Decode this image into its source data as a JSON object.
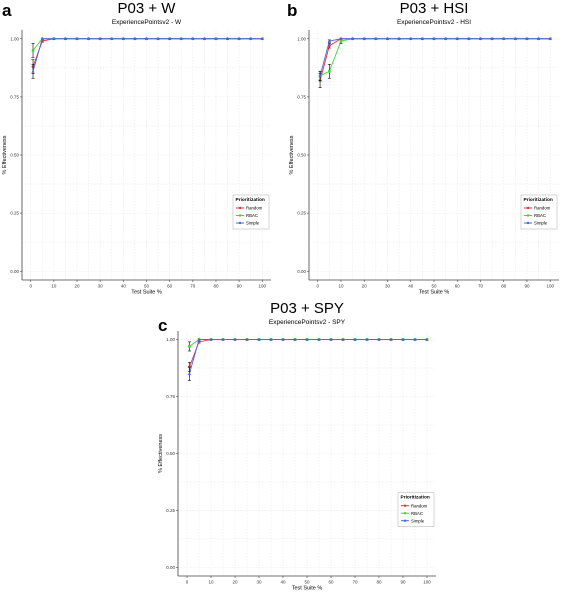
{
  "colors": {
    "random": "#e4343c",
    "rbac": "#3ed634",
    "simple": "#4a63e0",
    "grid": "#e9e9e9",
    "axis": "#444444",
    "text": "#000000"
  },
  "chart_data": [
    {
      "type": "line",
      "panel_letter": "a",
      "title": "P03 + W",
      "subtitle": "ExperiencePointsv2 - W",
      "xlabel": "Test Suite %",
      "ylabel": "% Effectiveness",
      "xlim": [
        0,
        100
      ],
      "ylim": [
        0,
        1
      ],
      "x_ticks": [
        0,
        10,
        20,
        30,
        40,
        50,
        60,
        70,
        80,
        90,
        100
      ],
      "y_ticks": [
        0.0,
        0.25,
        0.5,
        0.75,
        1.0
      ],
      "y_tick_labels": [
        "0.00",
        "0.25",
        "0.50",
        "0.75",
        "1.00"
      ],
      "grid": true,
      "legend": {
        "title": "Prioritization",
        "position": "bottom-right"
      },
      "x": [
        1,
        5,
        10,
        15,
        20,
        25,
        30,
        35,
        40,
        45,
        50,
        55,
        60,
        65,
        70,
        75,
        80,
        85,
        90,
        95,
        100
      ],
      "series": [
        {
          "name": "Random",
          "color_key": "random",
          "values": [
            0.88,
            0.99,
            1,
            1,
            1,
            1,
            1,
            1,
            1,
            1,
            1,
            1,
            1,
            1,
            1,
            1,
            1,
            1,
            1,
            1,
            1
          ],
          "err": [
            0.03,
            0.005,
            0,
            0,
            0,
            0,
            0,
            0,
            0,
            0,
            0,
            0,
            0,
            0,
            0,
            0,
            0,
            0,
            0,
            0,
            0
          ]
        },
        {
          "name": "RBAC",
          "color_key": "rbac",
          "values": [
            0.95,
            1,
            1,
            1,
            1,
            1,
            1,
            1,
            1,
            1,
            1,
            1,
            1,
            1,
            1,
            1,
            1,
            1,
            1,
            1,
            1
          ],
          "err": [
            0.03,
            0,
            0,
            0,
            0,
            0,
            0,
            0,
            0,
            0,
            0,
            0,
            0,
            0,
            0,
            0,
            0,
            0,
            0,
            0,
            0
          ]
        },
        {
          "name": "Simple",
          "color_key": "simple",
          "values": [
            0.86,
            1,
            1,
            1,
            1,
            1,
            1,
            1,
            1,
            1,
            1,
            1,
            1,
            1,
            1,
            1,
            1,
            1,
            1,
            1,
            1
          ],
          "err": [
            0.03,
            0,
            0,
            0,
            0,
            0,
            0,
            0,
            0,
            0,
            0,
            0,
            0,
            0,
            0,
            0,
            0,
            0,
            0,
            0,
            0
          ]
        }
      ]
    },
    {
      "type": "line",
      "panel_letter": "b",
      "title": "P03 + HSI",
      "subtitle": "ExperiencePointsv2 - HSI",
      "xlabel": "Test Suite %",
      "ylabel": "% Effectiveness",
      "xlim": [
        0,
        100
      ],
      "ylim": [
        0,
        1
      ],
      "x_ticks": [
        0,
        10,
        20,
        30,
        40,
        50,
        60,
        70,
        80,
        90,
        100
      ],
      "y_ticks": [
        0.0,
        0.25,
        0.5,
        0.75,
        1.0
      ],
      "y_tick_labels": [
        "0.00",
        "0.25",
        "0.50",
        "0.75",
        "1.00"
      ],
      "grid": true,
      "legend": {
        "title": "Prioritization",
        "position": "bottom-right"
      },
      "x": [
        1,
        5,
        10,
        15,
        20,
        25,
        30,
        35,
        40,
        45,
        50,
        55,
        60,
        65,
        70,
        75,
        80,
        85,
        90,
        95,
        100
      ],
      "series": [
        {
          "name": "Random",
          "color_key": "random",
          "values": [
            0.82,
            0.97,
            1,
            1,
            1,
            1,
            1,
            1,
            1,
            1,
            1,
            1,
            1,
            1,
            1,
            1,
            1,
            1,
            1,
            1,
            1
          ],
          "err": [
            0.03,
            0.01,
            0,
            0,
            0,
            0,
            0,
            0,
            0,
            0,
            0,
            0,
            0,
            0,
            0,
            0,
            0,
            0,
            0,
            0,
            0
          ]
        },
        {
          "name": "RBAC",
          "color_key": "rbac",
          "values": [
            0.84,
            0.86,
            0.99,
            1,
            1,
            1,
            1,
            1,
            1,
            1,
            1,
            1,
            1,
            1,
            1,
            1,
            1,
            1,
            1,
            1,
            1
          ],
          "err": [
            0.02,
            0.03,
            0.01,
            0,
            0,
            0,
            0,
            0,
            0,
            0,
            0,
            0,
            0,
            0,
            0,
            0,
            0,
            0,
            0,
            0,
            0
          ]
        },
        {
          "name": "Simple",
          "color_key": "simple",
          "values": [
            0.84,
            0.99,
            1,
            1,
            1,
            1,
            1,
            1,
            1,
            1,
            1,
            1,
            1,
            1,
            1,
            1,
            1,
            1,
            1,
            1,
            1
          ],
          "err": [
            0.02,
            0.005,
            0,
            0,
            0,
            0,
            0,
            0,
            0,
            0,
            0,
            0,
            0,
            0,
            0,
            0,
            0,
            0,
            0,
            0,
            0
          ]
        }
      ]
    },
    {
      "type": "line",
      "panel_letter": "c",
      "title": "P03 + SPY",
      "subtitle": "ExperiencePointsv2 - SPY",
      "xlabel": "Test Suite %",
      "ylabel": "% Effectiveness",
      "xlim": [
        0,
        100
      ],
      "ylim": [
        0,
        1
      ],
      "x_ticks": [
        0,
        10,
        20,
        30,
        40,
        50,
        60,
        70,
        80,
        90,
        100
      ],
      "y_ticks": [
        0.0,
        0.25,
        0.5,
        0.75,
        1.0
      ],
      "y_tick_labels": [
        "0.00",
        "0.25",
        "0.50",
        "0.75",
        "1.00"
      ],
      "grid": true,
      "legend": {
        "title": "Prioritization",
        "position": "bottom-right"
      },
      "x": [
        1,
        5,
        10,
        15,
        20,
        25,
        30,
        35,
        40,
        45,
        50,
        55,
        60,
        65,
        70,
        75,
        80,
        85,
        90,
        95,
        100
      ],
      "series": [
        {
          "name": "Random",
          "color_key": "random",
          "values": [
            0.88,
            0.99,
            1,
            1,
            1,
            1,
            1,
            1,
            1,
            1,
            1,
            1,
            1,
            1,
            1,
            1,
            1,
            1,
            1,
            1,
            1
          ],
          "err": [
            0.02,
            0.005,
            0,
            0,
            0,
            0,
            0,
            0,
            0,
            0,
            0,
            0,
            0,
            0,
            0,
            0,
            0,
            0,
            0,
            0,
            0
          ]
        },
        {
          "name": "RBAC",
          "color_key": "rbac",
          "values": [
            0.97,
            1,
            1,
            1,
            1,
            1,
            1,
            1,
            1,
            1,
            1,
            1,
            1,
            1,
            1,
            1,
            1,
            1,
            1,
            1,
            1
          ],
          "err": [
            0.02,
            0,
            0,
            0,
            0,
            0,
            0,
            0,
            0,
            0,
            0,
            0,
            0,
            0,
            0,
            0,
            0,
            0,
            0,
            0,
            0
          ]
        },
        {
          "name": "Simple",
          "color_key": "simple",
          "values": [
            0.85,
            1,
            1,
            1,
            1,
            1,
            1,
            1,
            1,
            1,
            1,
            1,
            1,
            1,
            1,
            1,
            1,
            1,
            1,
            1,
            1
          ],
          "err": [
            0.03,
            0,
            0,
            0,
            0,
            0,
            0,
            0,
            0,
            0,
            0,
            0,
            0,
            0,
            0,
            0,
            0,
            0,
            0,
            0,
            0
          ]
        }
      ]
    }
  ]
}
